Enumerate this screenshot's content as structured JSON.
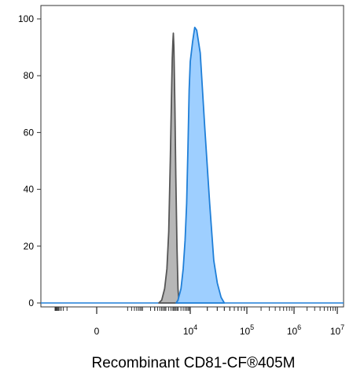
{
  "chart_data": {
    "type": "area",
    "title": "",
    "xlabel": "Recombinant CD81-CF®405M",
    "ylabel": "",
    "x_scale": "biexponential",
    "ylim": [
      0,
      100
    ],
    "y_ticks": [
      0,
      20,
      40,
      60,
      80,
      100
    ],
    "x_tick_labels": [
      {
        "base": "0",
        "exp": ""
      },
      {
        "base": "10",
        "exp": "4"
      },
      {
        "base": "10",
        "exp": "5"
      },
      {
        "base": "10",
        "exp": "6"
      },
      {
        "base": "10",
        "exp": "7"
      }
    ],
    "grid": false,
    "series": [
      {
        "fill": "#b3b3b3",
        "stroke": "#555555",
        "x": [
          450,
          600,
          800,
          1000,
          1200,
          1400,
          1600,
          1700,
          1800,
          1900,
          2000,
          2200,
          2400,
          2700,
          3000,
          3300
        ],
        "y": [
          0,
          1,
          5,
          12,
          25,
          50,
          75,
          86,
          92,
          95,
          90,
          70,
          45,
          20,
          5,
          0
        ]
      },
      {
        "fill": "#99ccff",
        "stroke": "#1f7fd8",
        "x": [
          2500,
          3000,
          4000,
          5000,
          6000,
          7000,
          8000,
          9000,
          10000,
          11000,
          12000,
          13000,
          15000,
          18000,
          22000,
          26000,
          30000,
          35000,
          40000
        ],
        "y": [
          0,
          1,
          5,
          12,
          22,
          35,
          55,
          75,
          85,
          92,
          97,
          96,
          88,
          62,
          35,
          15,
          7,
          2,
          0
        ]
      }
    ]
  }
}
